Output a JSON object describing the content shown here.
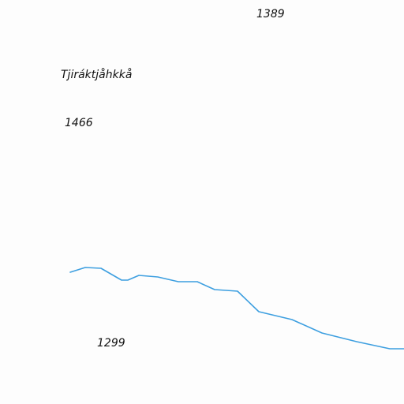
{
  "map": {
    "labels": {
      "elevation_top": "1389",
      "place_name": "Tjiráktjåhkkå",
      "elevation_left": "1466",
      "elevation_bottom": "1299"
    },
    "colors": {
      "background": "#fdfdfd",
      "stream": "#3d9fe0",
      "text": "#111111"
    }
  }
}
